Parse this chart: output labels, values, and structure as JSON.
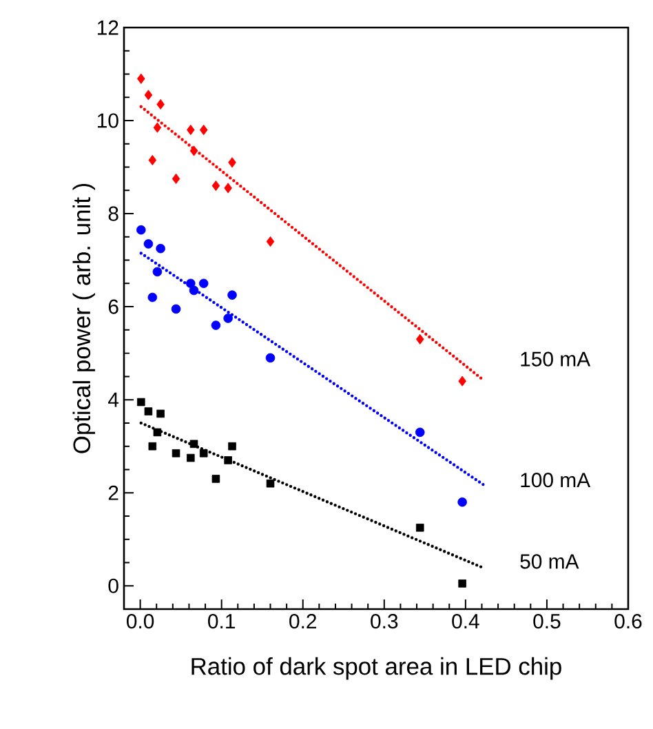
{
  "chart_data": {
    "type": "scatter",
    "xlabel": "Ratio of dark spot area in LED chip",
    "ylabel": "Optical power ( arb. unit )",
    "xlim": [
      -0.02,
      0.6
    ],
    "ylim": [
      -0.5,
      12
    ],
    "xticks": [
      {
        "value": 0,
        "label": "0.0"
      },
      0.1,
      0.2,
      0.3,
      0.4,
      0.5,
      0.6
    ],
    "yticks": [
      0,
      2,
      4,
      6,
      8,
      10,
      12
    ],
    "grid": false,
    "series": [
      {
        "name": "150 mA",
        "type": "scatter",
        "marker": "diamond",
        "color": "#ff0000",
        "x": [
          0.001,
          0.01,
          0.025,
          0.021,
          0.015,
          0.044,
          0.062,
          0.078,
          0.066,
          0.093,
          0.108,
          0.113,
          0.16,
          0.344,
          0.396
        ],
        "values": [
          10.9,
          10.55,
          10.35,
          9.85,
          9.15,
          8.75,
          9.8,
          9.8,
          9.35,
          8.6,
          8.55,
          9.1,
          7.4,
          5.3,
          4.4
        ]
      },
      {
        "name": "100 mA",
        "type": "scatter",
        "marker": "circle",
        "color": "#0000ff",
        "x": [
          0.001,
          0.01,
          0.025,
          0.021,
          0.015,
          0.044,
          0.062,
          0.078,
          0.066,
          0.093,
          0.108,
          0.113,
          0.16,
          0.344,
          0.396
        ],
        "values": [
          7.65,
          7.35,
          7.25,
          6.75,
          6.2,
          5.95,
          6.5,
          6.5,
          6.35,
          5.6,
          5.75,
          6.25,
          4.9,
          3.3,
          1.8
        ]
      },
      {
        "name": "50 mA",
        "type": "scatter",
        "marker": "square",
        "color": "#000000",
        "x": [
          0.001,
          0.01,
          0.025,
          0.021,
          0.015,
          0.044,
          0.062,
          0.078,
          0.066,
          0.093,
          0.108,
          0.113,
          0.16,
          0.344,
          0.396
        ],
        "values": [
          3.95,
          3.75,
          3.7,
          3.3,
          3.0,
          2.85,
          2.75,
          2.85,
          3.05,
          2.3,
          2.7,
          3.0,
          2.2,
          1.25,
          0.05
        ]
      },
      {
        "type": "line",
        "line_style": "dotted",
        "marker": "none",
        "color": "#ff0000",
        "x": [
          0.001,
          0.42
        ],
        "values": [
          10.3,
          4.45
        ]
      },
      {
        "type": "line",
        "line_style": "dotted",
        "marker": "none",
        "color": "#0000ff",
        "x": [
          0.001,
          0.424
        ],
        "values": [
          7.15,
          2.15
        ]
      },
      {
        "type": "line",
        "line_style": "dotted",
        "marker": "none",
        "color": "#000000",
        "x": [
          0.001,
          0.42
        ],
        "values": [
          3.5,
          0.4
        ]
      }
    ]
  }
}
